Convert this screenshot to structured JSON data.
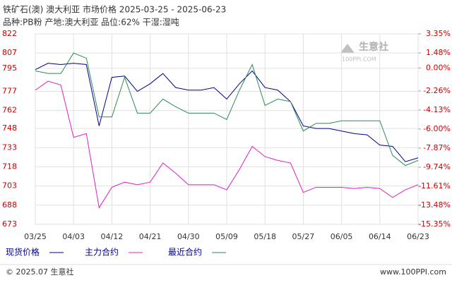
{
  "chart_data": {
    "type": "line",
    "title": "铁矿石(澳) 澳大利亚 市场价格 2025-03-25 - 2025-06-23",
    "subtitle": "品种:PB粉 产地:澳大利亚 品位:62% 干湿:湿吨",
    "categories": [
      "03/25",
      null,
      null,
      "04/03",
      null,
      null,
      "04/12",
      null,
      null,
      "04/21",
      null,
      null,
      "04/30",
      null,
      null,
      "05/09",
      null,
      null,
      "05/18",
      null,
      null,
      "05/27",
      null,
      null,
      "06/05",
      null,
      null,
      "06/14",
      null,
      null,
      "06/23"
    ],
    "series": [
      {
        "name": "现货价格",
        "color": "#00008b",
        "values": [
          794,
          799,
          798,
          799,
          798,
          750,
          788,
          789,
          777,
          783,
          791,
          780,
          778,
          778,
          780,
          771,
          783,
          793,
          780,
          778,
          769,
          750,
          748,
          748,
          746,
          744,
          743,
          735,
          734,
          722,
          725
        ]
      },
      {
        "name": "主力合约",
        "color": "#e020c0",
        "values": [
          778,
          785,
          782,
          741,
          744,
          686,
          702,
          706,
          704,
          706,
          721,
          713,
          704,
          704,
          704,
          700,
          716,
          734,
          726,
          723,
          721,
          698,
          702,
          702,
          702,
          701,
          702,
          701,
          694,
          700,
          704
        ]
      },
      {
        "name": "最近合约",
        "color": "#2e8b57",
        "values": [
          793,
          791,
          791,
          807,
          803,
          757,
          757,
          788,
          760,
          760,
          771,
          765,
          760,
          760,
          760,
          755,
          778,
          798,
          766,
          771,
          769,
          746,
          752,
          752,
          754,
          754,
          754,
          754,
          727,
          719,
          723
        ]
      }
    ],
    "ylim": [
      673,
      822
    ],
    "yticks": [
      822,
      807,
      795,
      777,
      762,
      748,
      733,
      718,
      703,
      688,
      673
    ],
    "y2lim": [
      -15.35,
      3.35
    ],
    "y2ticks": [
      {
        "value": 3.35,
        "label": "3.35%"
      },
      {
        "value": 1.48,
        "label": "1.48%"
      },
      {
        "value": 0,
        "label": "0.00%"
      },
      {
        "value": -2.26,
        "label": "-2.26%"
      },
      {
        "value": -4.13,
        "label": "-4.13%"
      },
      {
        "value": -6.0,
        "label": "-6.00%"
      },
      {
        "value": -7.87,
        "label": "-7.87%"
      },
      {
        "value": -9.74,
        "label": "-9.74%"
      },
      {
        "value": -11.61,
        "label": "-11.61%"
      },
      {
        "value": -13.48,
        "label": "-13.48%"
      },
      {
        "value": -15.35,
        "label": "-15.35%"
      }
    ],
    "grid": true,
    "logo": {
      "name": "生意社",
      "site": "100PPI.COM"
    },
    "footer": {
      "left": "© 2025.07 生意社",
      "right": "www.100PPI.com"
    }
  }
}
